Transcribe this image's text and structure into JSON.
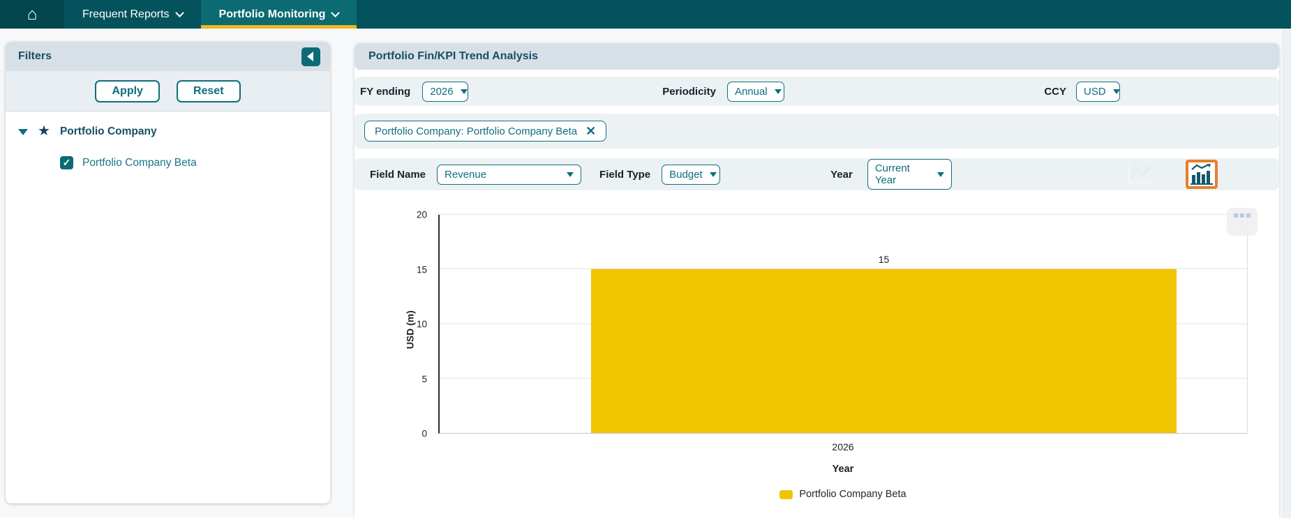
{
  "nav": {
    "home_icon": "home",
    "items": [
      {
        "label": "Frequent Reports",
        "active": false
      },
      {
        "label": "Portfolio Monitoring",
        "active": true
      }
    ]
  },
  "filters_panel": {
    "title": "Filters",
    "apply_label": "Apply",
    "reset_label": "Reset",
    "tree": {
      "root_label": "Portfolio Company",
      "child_label": "Portfolio Company Beta",
      "child_checked": true,
      "checkmark": "✓"
    }
  },
  "main": {
    "title": "Portfolio Fin/KPI Trend Analysis",
    "fy_label": "FY ending",
    "fy_value": "2026",
    "periodicity_label": "Periodicity",
    "periodicity_value": "Annual",
    "ccy_label": "CCY",
    "ccy_value": "USD",
    "chip_label": "Portfolio Company: Portfolio Company Beta",
    "chip_close": "✕",
    "field_name_label": "Field Name",
    "field_name_value": "Revenue",
    "field_type_label": "Field Type",
    "field_type_value": "Budget",
    "year_label": "Year",
    "year_value": "Current Year"
  },
  "chart_data": {
    "type": "bar",
    "title": "",
    "categories": [
      "2026"
    ],
    "series": [
      {
        "name": "Portfolio Company Beta",
        "values": [
          15
        ],
        "color": "#F1C400"
      }
    ],
    "xlabel": "Year",
    "ylabel": "USD (m)",
    "ylim": [
      0,
      20
    ],
    "yticks": [
      0,
      5,
      10,
      15,
      20
    ],
    "grid": true,
    "value_labels": true,
    "legend_position": "bottom"
  },
  "colors": {
    "nav_teal": "#04535C",
    "nav_active_teal": "#0C6A73",
    "active_tab_underline": "#F0B41E",
    "accent_teal": "#0E6F7E",
    "header_bg": "#D8E0E7",
    "row_bg": "#ECF1F4",
    "bar_yellow": "#F1C400",
    "selected_icon_border": "#E87E2A"
  }
}
